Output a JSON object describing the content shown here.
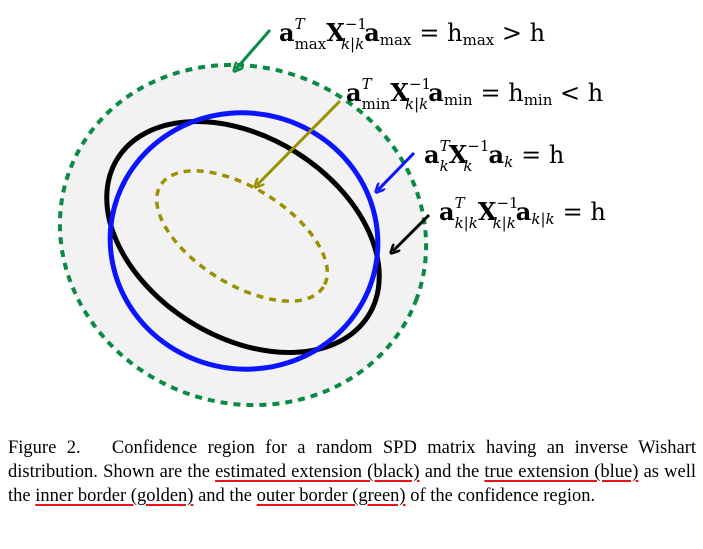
{
  "equations": {
    "max": {
      "a": "a",
      "sup_T": "T",
      "sub_a": "max",
      "X": "X",
      "sup_X": "−1",
      "sub_X": "k|k",
      "a2": "a",
      "sub_a2": "max",
      "rhs": "= h",
      "rhs_sub": "max",
      "rhs_tail": " > h"
    },
    "min": {
      "a": "a",
      "sup_T": "T",
      "sub_a": "min",
      "X": "X",
      "sup_X": "−1",
      "sub_X": "k|k",
      "a2": "a",
      "sub_a2": "min",
      "rhs": "= h",
      "rhs_sub": "min",
      "rhs_tail": " < h"
    },
    "k": {
      "a": "a",
      "sup_T": "T",
      "sub_a": "k",
      "X": "X",
      "sup_X": "−1",
      "sub_X": "k",
      "a2": "a",
      "sub_a2": "k",
      "rhs": "= h"
    },
    "kk": {
      "a": "a",
      "sup_T": "T",
      "sub_a": "k|k",
      "X": "X",
      "sup_X": "−1",
      "sub_X": "k|k",
      "a2": "a",
      "sub_a2": "k|k",
      "rhs": "= h"
    }
  },
  "colors": {
    "outer_border": "#0a8a45",
    "inner_border": "#9a9000",
    "true_extension": "#0a14ff",
    "estimated_extension": "#000000",
    "region_fill": "#f2f2f2",
    "underline": "#e8141c"
  },
  "caption": {
    "label": "Figure 2.",
    "t1": "Confidence region for a random SPD matrix having an inverse Wishart distribution. Shown are the ",
    "u1": "estimated extension (black)",
    "t2": " and the ",
    "u2": "true extension (blue)",
    "t3": " as well the ",
    "u3": "inner border (golden)",
    "t4": " and the ",
    "u4": "outer border (green)",
    "t5": " of the confidence region."
  }
}
